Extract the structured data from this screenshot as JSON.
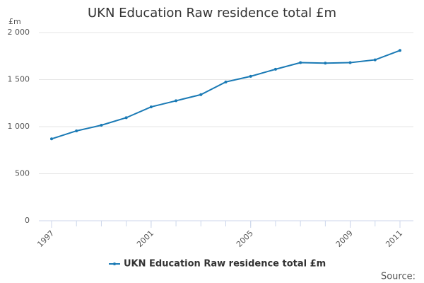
{
  "chart_data": {
    "type": "line",
    "title": "UKN Education Raw residence total £m",
    "y_unit": "£m",
    "source": "Source:",
    "x": [
      1997,
      1998,
      1999,
      2000,
      2001,
      2002,
      2003,
      2004,
      2005,
      2006,
      2007,
      2008,
      2009,
      2010,
      2011
    ],
    "series": [
      {
        "name": "UKN Education Raw residence total £m",
        "color": "#1a7ab5",
        "values": [
          870,
          955,
          1015,
          1095,
          1210,
          1275,
          1340,
          1475,
          1535,
          1610,
          1680,
          1675,
          1680,
          1710,
          1810
        ]
      }
    ],
    "xlim": [
      1997,
      2011
    ],
    "xticks": [
      1997,
      2001,
      2005,
      2009,
      2011
    ],
    "ylim": [
      0,
      2000
    ],
    "yticks": [
      0,
      500,
      {
        "value": 1000,
        "label": "1 000"
      },
      {
        "value": 1500,
        "label": "1 500"
      },
      {
        "value": 2000,
        "label": "2 000"
      }
    ],
    "grid": true,
    "legend": "bottom"
  }
}
